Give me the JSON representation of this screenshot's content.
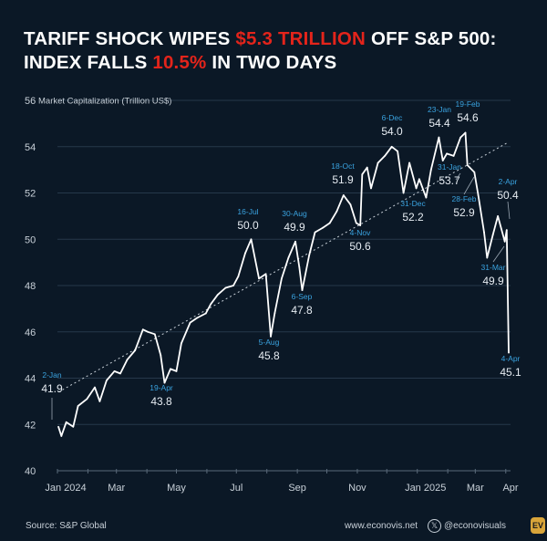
{
  "title": {
    "line1_pre": "TARIFF SHOCK WIPES ",
    "line1_hl": "$5.3 TRILLION",
    "line1_post": " OFF S&P 500:",
    "line2_pre": "INDEX FALLS ",
    "line2_hl": "10.5%",
    "line2_post": " IN TWO DAYS"
  },
  "footer": {
    "source": "Source: S&P Global",
    "website": "www.econovis.net",
    "handle": "@econovisuals",
    "logo": "EV"
  },
  "colors": {
    "background": "#0b1826",
    "line": "#ffffff",
    "annotation_date": "#3aa3e0",
    "highlight": "#e3241b",
    "grid": "#26384a"
  },
  "chart_data": {
    "type": "line",
    "ylabel": "Market Capitalization (Trillion US$)",
    "ylim": [
      40,
      56
    ],
    "yticks": [
      "40",
      "42",
      "44",
      "46",
      "48",
      "50",
      "52",
      "54",
      "56"
    ],
    "xlim": [
      "2024-01-01",
      "2025-04-04"
    ],
    "xticks": [
      {
        "date": "2024-01-01",
        "label": "Jan 2024"
      },
      {
        "date": "2024-03-01",
        "label": "Mar"
      },
      {
        "date": "2024-05-01",
        "label": "May"
      },
      {
        "date": "2024-07-01",
        "label": "Jul"
      },
      {
        "date": "2024-09-01",
        "label": "Sep"
      },
      {
        "date": "2024-11-01",
        "label": "Nov"
      },
      {
        "date": "2025-01-01",
        "label": "Jan 2025"
      },
      {
        "date": "2025-03-01",
        "label": "Mar"
      },
      {
        "date": "2025-04-01",
        "label": "Apr"
      }
    ],
    "grid": true,
    "trendline": {
      "style": "dotted",
      "from": [
        "2024-01-02",
        43.4
      ],
      "to": [
        "2025-04-04",
        54.2
      ]
    },
    "series": [
      {
        "x": [
          "2024-01-02",
          "2024-01-05",
          "2024-01-10",
          "2024-01-17",
          "2024-01-22",
          "2024-01-31",
          "2024-02-08",
          "2024-02-13",
          "2024-02-20",
          "2024-02-28",
          "2024-03-05",
          "2024-03-12",
          "2024-03-20",
          "2024-03-28",
          "2024-04-02",
          "2024-04-09",
          "2024-04-15",
          "2024-04-19",
          "2024-04-25",
          "2024-05-01",
          "2024-05-06",
          "2024-05-15",
          "2024-05-22",
          "2024-05-31",
          "2024-06-05",
          "2024-06-12",
          "2024-06-20",
          "2024-06-28",
          "2024-07-03",
          "2024-07-10",
          "2024-07-16",
          "2024-07-24",
          "2024-07-31",
          "2024-08-05",
          "2024-08-09",
          "2024-08-16",
          "2024-08-23",
          "2024-08-30",
          "2024-09-03",
          "2024-09-06",
          "2024-09-13",
          "2024-09-19",
          "2024-09-27",
          "2024-10-04",
          "2024-10-11",
          "2024-10-18",
          "2024-10-25",
          "2024-10-31",
          "2024-11-04",
          "2024-11-06",
          "2024-11-11",
          "2024-11-15",
          "2024-11-22",
          "2024-11-29",
          "2024-12-06",
          "2024-12-12",
          "2024-12-18",
          "2024-12-24",
          "2024-12-31",
          "2025-01-03",
          "2025-01-10",
          "2025-01-15",
          "2025-01-23",
          "2025-01-27",
          "2025-01-31",
          "2025-02-07",
          "2025-02-14",
          "2025-02-19",
          "2025-02-21",
          "2025-02-28",
          "2025-03-04",
          "2025-03-10",
          "2025-03-13",
          "2025-03-19",
          "2025-03-24",
          "2025-03-31",
          "2025-04-02",
          "2025-04-04"
        ],
        "y": [
          41.9,
          41.5,
          42.1,
          41.9,
          42.8,
          43.1,
          43.6,
          43.0,
          43.9,
          44.3,
          44.2,
          44.8,
          45.2,
          46.1,
          46.0,
          45.9,
          45.0,
          43.8,
          44.4,
          44.3,
          45.5,
          46.4,
          46.6,
          46.8,
          47.2,
          47.6,
          47.9,
          48.0,
          48.4,
          49.4,
          50.0,
          48.3,
          48.5,
          45.8,
          46.8,
          48.3,
          49.2,
          49.9,
          48.8,
          47.8,
          49.3,
          50.3,
          50.5,
          50.7,
          51.2,
          51.9,
          51.5,
          50.7,
          50.6,
          52.8,
          53.1,
          52.2,
          53.3,
          53.6,
          54.0,
          53.8,
          52.0,
          53.3,
          52.2,
          52.6,
          51.8,
          53.0,
          54.4,
          53.4,
          53.7,
          53.6,
          54.4,
          54.6,
          53.2,
          52.9,
          51.9,
          50.3,
          49.2,
          50.2,
          51.0,
          49.9,
          50.4,
          45.1
        ]
      }
    ],
    "annotations": [
      {
        "date": "2-Jan",
        "value": "41.9"
      },
      {
        "date": "19-Apr",
        "value": "43.8"
      },
      {
        "date": "16-Jul",
        "value": "50.0"
      },
      {
        "date": "5-Aug",
        "value": "45.8"
      },
      {
        "date": "30-Aug",
        "value": "49.9"
      },
      {
        "date": "6-Sep",
        "value": "47.8"
      },
      {
        "date": "18-Oct",
        "value": "51.9"
      },
      {
        "date": "4-Nov",
        "value": "50.6"
      },
      {
        "date": "6-Dec",
        "value": "54.0"
      },
      {
        "date": "31-Dec",
        "value": "52.2"
      },
      {
        "date": "23-Jan",
        "value": "54.4"
      },
      {
        "date": "31-Jan",
        "value": "53.7"
      },
      {
        "date": "19-Feb",
        "value": "54.6"
      },
      {
        "date": "28-Feb",
        "value": "52.9"
      },
      {
        "date": "31-Mar",
        "value": "49.9"
      },
      {
        "date": "2-Apr",
        "value": "50.4"
      },
      {
        "date": "4-Apr",
        "value": "45.1"
      }
    ]
  }
}
